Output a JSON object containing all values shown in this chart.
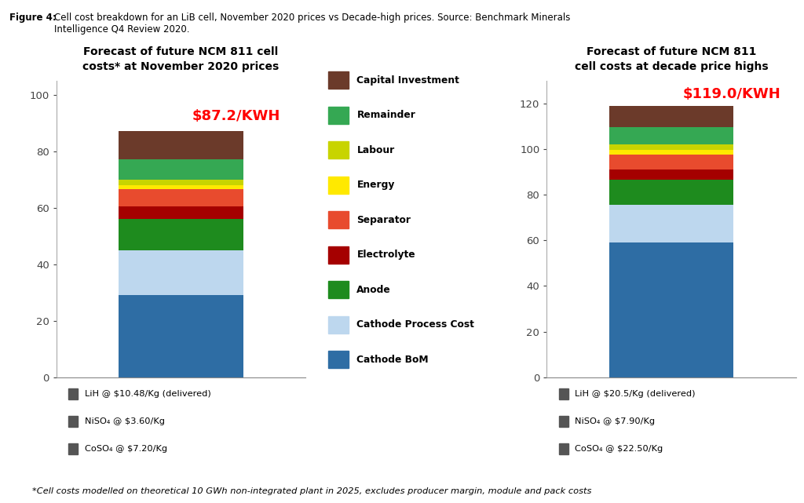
{
  "title_left": "Forecast of future NCM 811 cell\ncosts* at November 2020 prices",
  "title_right": "Forecast of future NCM 811\ncell costs at decade price highs",
  "figure_title_bold": "Figure 4: ",
  "figure_title_normal": "Cell cost breakdown for an LiB cell, November 2020 prices vs Decade-high prices. Source: Benchmark Minerals\nIntelligence Q4 Review 2020.",
  "footnote": "*Cell costs modelled on theoretical 10 GWh non-integrated plant in 2025, excludes producer margin, module and pack costs",
  "price_left": "$87.2/KWH",
  "price_right": "$119.0/KWH",
  "categories": [
    "Cathode BoM",
    "Cathode Process Cost",
    "Anode",
    "Electrolyte",
    "Separator",
    "Energy",
    "Labour",
    "Remainder",
    "Capital Investment"
  ],
  "colors": [
    "#2E6DA4",
    "#BDD7EE",
    "#1E8B1E",
    "#A50000",
    "#E84B2E",
    "#FFE900",
    "#C8D400",
    "#35A853",
    "#6B3A2A"
  ],
  "values_left": [
    29.0,
    16.0,
    11.0,
    4.5,
    6.0,
    1.5,
    2.0,
    7.0,
    10.2
  ],
  "values_right": [
    59.0,
    16.5,
    11.0,
    4.5,
    6.5,
    2.0,
    2.5,
    7.5,
    9.5
  ],
  "ylim_left": [
    0,
    105
  ],
  "ylim_right": [
    0,
    130
  ],
  "yticks_left": [
    0,
    20,
    40,
    60,
    80,
    100
  ],
  "yticks_right": [
    0,
    20,
    40,
    60,
    80,
    100,
    120
  ],
  "legend_left_items": [
    "LiH @ $10.48/Kg (delivered)",
    "NiSO₄ @ $3.60/Kg",
    "CoSO₄ @ $7.20/Kg"
  ],
  "legend_right_items": [
    "LiH @ $20.5/Kg (delivered)",
    "NiSO₄ @ $7.90/Kg",
    "CoSO₄ @ $22.50/Kg"
  ],
  "legend_color": "#555555",
  "bg_color": "#FFFFFF",
  "bar_width": 0.55
}
